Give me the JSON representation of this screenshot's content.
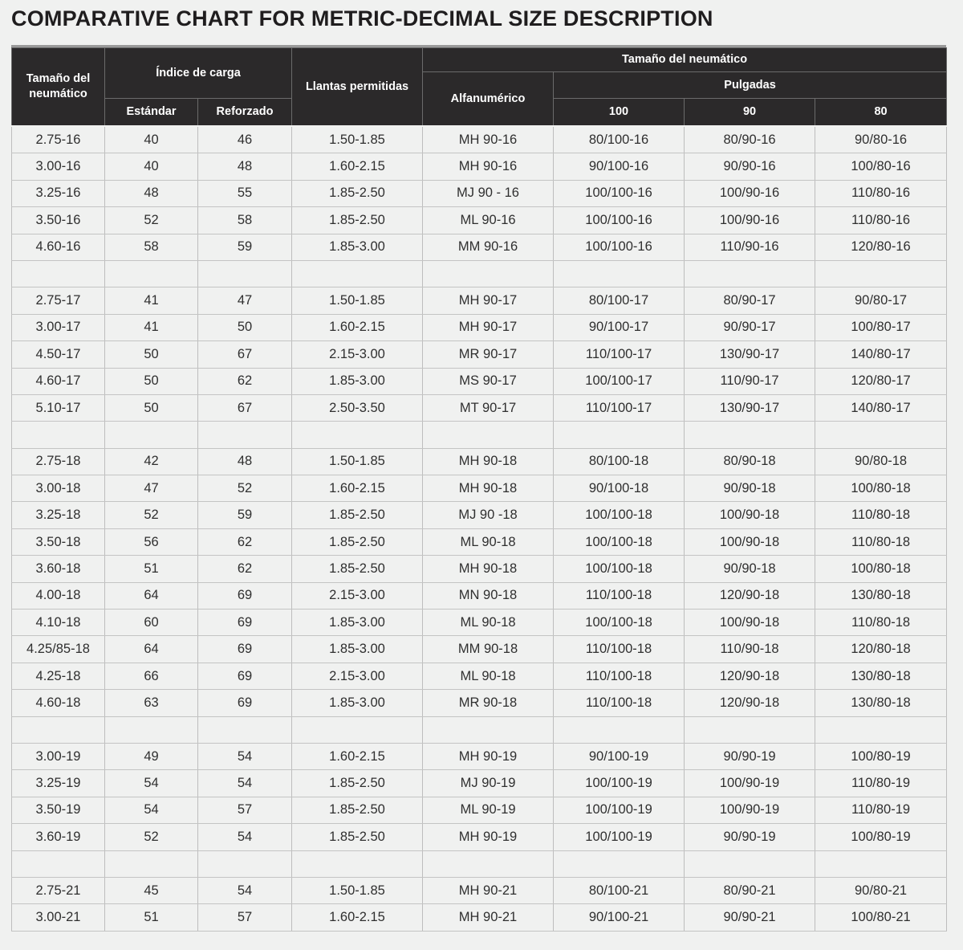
{
  "title": "COMPARATIVE CHART FOR METRIC-DECIMAL SIZE DESCRIPTION",
  "headers": {
    "tire_size": "Tamaño del neumático",
    "load_index": "Índice de carga",
    "standard": "Estándar",
    "reinforced": "Reforzado",
    "rims": "Llantas permitidas",
    "tire_size_group": "Tamaño del neumático",
    "alphanumeric": "Alfanumérico",
    "inches": "Pulgadas",
    "c100": "100",
    "c90": "90",
    "c80": "80"
  },
  "rows": [
    [
      "2.75-16",
      "40",
      "46",
      "1.50-1.85",
      "MH 90-16",
      "80/100-16",
      "80/90-16",
      "90/80-16"
    ],
    [
      "3.00-16",
      "40",
      "48",
      "1.60-2.15",
      "MH 90-16",
      "90/100-16",
      "90/90-16",
      "100/80-16"
    ],
    [
      "3.25-16",
      "48",
      "55",
      "1.85-2.50",
      "MJ 90 - 16",
      "100/100-16",
      "100/90-16",
      "110/80-16"
    ],
    [
      "3.50-16",
      "52",
      "58",
      "1.85-2.50",
      "ML 90-16",
      "100/100-16",
      "100/90-16",
      "110/80-16"
    ],
    [
      "4.60-16",
      "58",
      "59",
      "1.85-3.00",
      "MM 90-16",
      "100/100-16",
      "110/90-16",
      "120/80-16"
    ],
    [
      "",
      "",
      "",
      "",
      "",
      "",
      "",
      ""
    ],
    [
      "2.75-17",
      "41",
      "47",
      "1.50-1.85",
      "MH 90-17",
      "80/100-17",
      "80/90-17",
      "90/80-17"
    ],
    [
      "3.00-17",
      "41",
      "50",
      "1.60-2.15",
      "MH 90-17",
      "90/100-17",
      "90/90-17",
      "100/80-17"
    ],
    [
      "4.50-17",
      "50",
      "67",
      "2.15-3.00",
      "MR 90-17",
      "110/100-17",
      "130/90-17",
      "140/80-17"
    ],
    [
      "4.60-17",
      "50",
      "62",
      "1.85-3.00",
      "MS 90-17",
      "100/100-17",
      "110/90-17",
      "120/80-17"
    ],
    [
      "5.10-17",
      "50",
      "67",
      "2.50-3.50",
      "MT 90-17",
      "110/100-17",
      "130/90-17",
      "140/80-17"
    ],
    [
      "",
      "",
      "",
      "",
      "",
      "",
      "",
      ""
    ],
    [
      "2.75-18",
      "42",
      "48",
      "1.50-1.85",
      "MH 90-18",
      "80/100-18",
      "80/90-18",
      "90/80-18"
    ],
    [
      "3.00-18",
      "47",
      "52",
      "1.60-2.15",
      "MH 90-18",
      "90/100-18",
      "90/90-18",
      "100/80-18"
    ],
    [
      "3.25-18",
      "52",
      "59",
      "1.85-2.50",
      "MJ 90 -18",
      "100/100-18",
      "100/90-18",
      "110/80-18"
    ],
    [
      "3.50-18",
      "56",
      "62",
      "1.85-2.50",
      "ML 90-18",
      "100/100-18",
      "100/90-18",
      "110/80-18"
    ],
    [
      "3.60-18",
      "51",
      "62",
      "1.85-2.50",
      "MH 90-18",
      "100/100-18",
      "90/90-18",
      "100/80-18"
    ],
    [
      "4.00-18",
      "64",
      "69",
      "2.15-3.00",
      "MN 90-18",
      "110/100-18",
      "120/90-18",
      "130/80-18"
    ],
    [
      "4.10-18",
      "60",
      "69",
      "1.85-3.00",
      "ML 90-18",
      "100/100-18",
      "100/90-18",
      "110/80-18"
    ],
    [
      "4.25/85-18",
      "64",
      "69",
      "1.85-3.00",
      "MM 90-18",
      "110/100-18",
      "110/90-18",
      "120/80-18"
    ],
    [
      "4.25-18",
      "66",
      "69",
      "2.15-3.00",
      "ML 90-18",
      "110/100-18",
      "120/90-18",
      "130/80-18"
    ],
    [
      "4.60-18",
      "63",
      "69",
      "1.85-3.00",
      "MR 90-18",
      "110/100-18",
      "120/90-18",
      "130/80-18"
    ],
    [
      "",
      "",
      "",
      "",
      "",
      "",
      "",
      ""
    ],
    [
      "3.00-19",
      "49",
      "54",
      "1.60-2.15",
      "MH 90-19",
      "90/100-19",
      "90/90-19",
      "100/80-19"
    ],
    [
      "3.25-19",
      "54",
      "54",
      "1.85-2.50",
      "MJ 90-19",
      "100/100-19",
      "100/90-19",
      "110/80-19"
    ],
    [
      "3.50-19",
      "54",
      "57",
      "1.85-2.50",
      "ML 90-19",
      "100/100-19",
      "100/90-19",
      "110/80-19"
    ],
    [
      "3.60-19",
      "52",
      "54",
      "1.85-2.50",
      "MH 90-19",
      "100/100-19",
      "90/90-19",
      "100/80-19"
    ],
    [
      "",
      "",
      "",
      "",
      "",
      "",
      "",
      ""
    ],
    [
      "2.75-21",
      "45",
      "54",
      "1.50-1.85",
      "MH 90-21",
      "80/100-21",
      "80/90-21",
      "90/80-21"
    ],
    [
      "3.00-21",
      "51",
      "57",
      "1.60-2.15",
      "MH 90-21",
      "90/100-21",
      "90/90-21",
      "100/80-21"
    ]
  ]
}
